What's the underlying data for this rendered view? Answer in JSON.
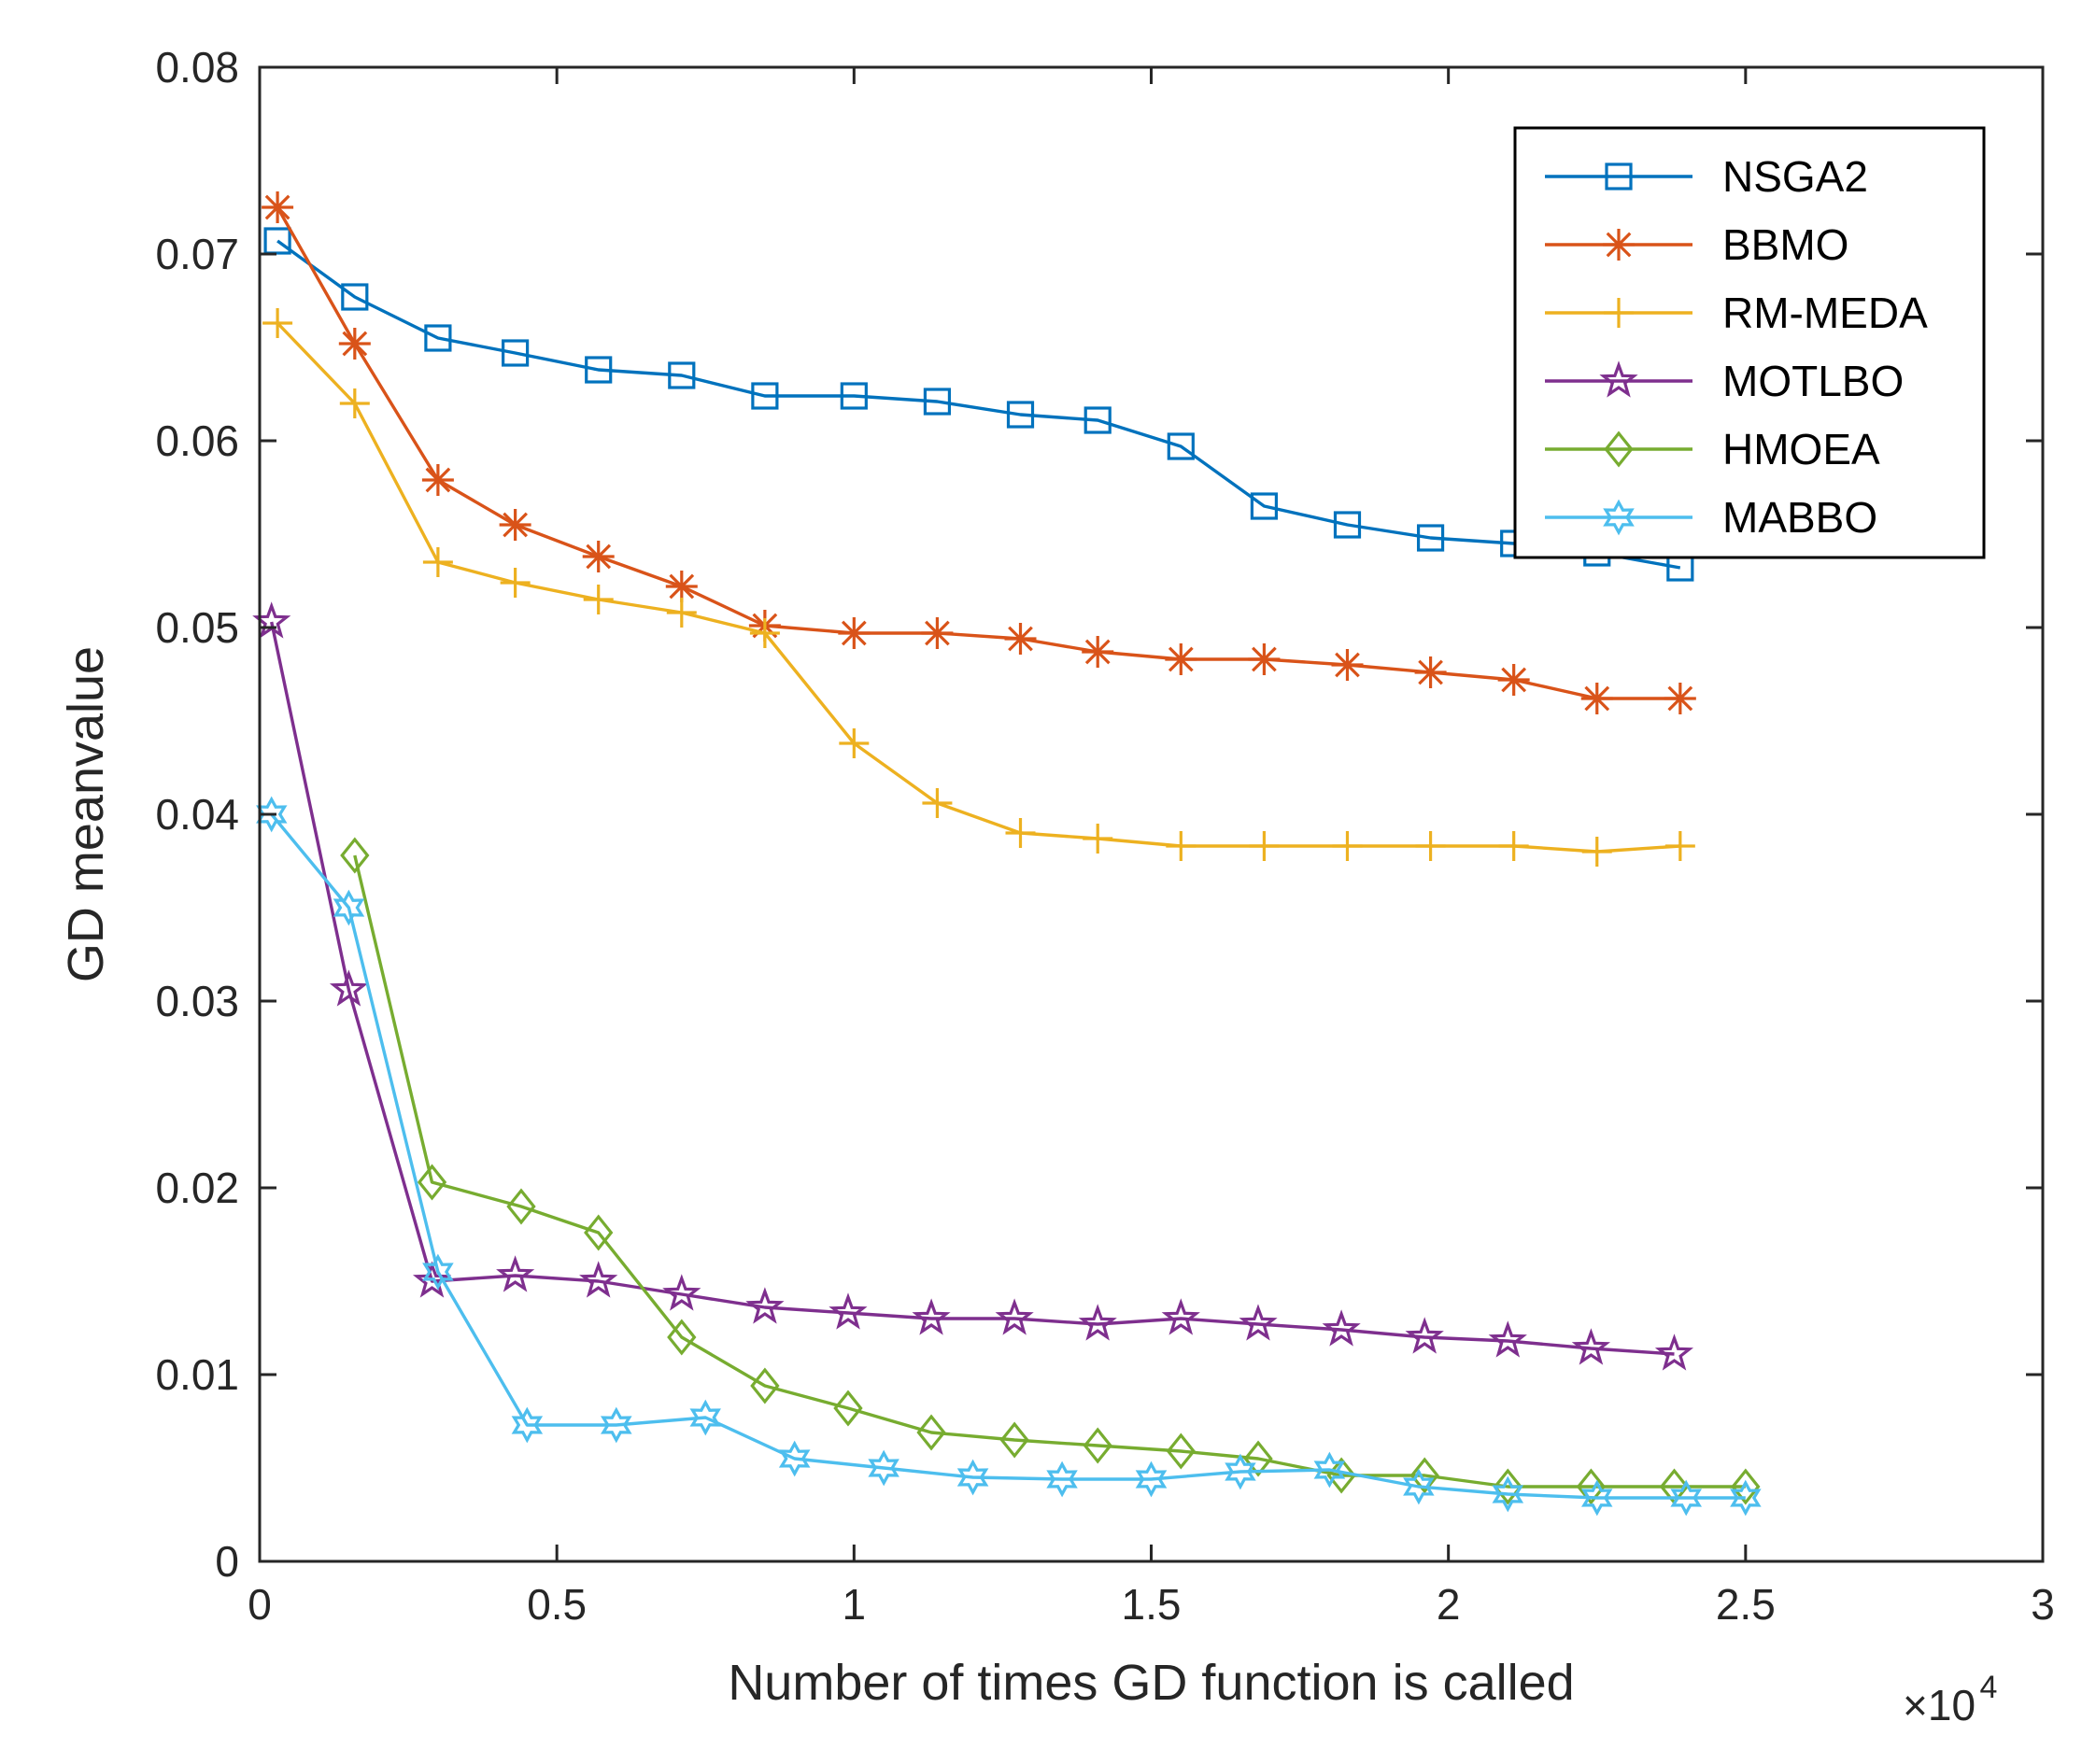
{
  "chart_data": {
    "type": "line",
    "title": "",
    "xlabel": "Number of times GD function is called",
    "ylabel": "GD meanvalue",
    "x_exponent_label": {
      "base": "×10",
      "power": "4"
    },
    "xlim": [
      0,
      3
    ],
    "ylim": [
      0,
      0.08
    ],
    "x_ticks": [
      "0",
      "0.5",
      "1",
      "1.5",
      "2",
      "2.5",
      "3"
    ],
    "y_ticks": [
      "0",
      "0.01",
      "0.02",
      "0.03",
      "0.04",
      "0.05",
      "0.06",
      "0.07",
      "0.08"
    ],
    "grid": false,
    "legend_position": "top-right",
    "series": [
      {
        "name": "NSGA2",
        "color": "#0072BD",
        "marker": "square",
        "x": [
          0.03,
          0.16,
          0.3,
          0.43,
          0.57,
          0.71,
          0.85,
          1.0,
          1.14,
          1.28,
          1.41,
          1.55,
          1.69,
          1.83,
          1.97,
          2.11,
          2.25,
          2.39
        ],
        "y": [
          0.0707,
          0.0677,
          0.0655,
          0.0647,
          0.0638,
          0.0635,
          0.0624,
          0.0624,
          0.0621,
          0.0614,
          0.0611,
          0.0597,
          0.0565,
          0.0555,
          0.0548,
          0.0545,
          0.054,
          0.0532
        ]
      },
      {
        "name": "BBMO",
        "color": "#D95319",
        "marker": "asterisk",
        "x": [
          0.03,
          0.16,
          0.3,
          0.43,
          0.57,
          0.71,
          0.85,
          1.0,
          1.14,
          1.28,
          1.41,
          1.55,
          1.69,
          1.83,
          1.97,
          2.11,
          2.25,
          2.39
        ],
        "y": [
          0.0725,
          0.0652,
          0.0579,
          0.0555,
          0.0538,
          0.0522,
          0.0501,
          0.0497,
          0.0497,
          0.0494,
          0.0487,
          0.0483,
          0.0483,
          0.048,
          0.0476,
          0.0472,
          0.0462,
          0.0462
        ]
      },
      {
        "name": "RM-MEDA",
        "color": "#EDB120",
        "marker": "plus",
        "x": [
          0.03,
          0.16,
          0.3,
          0.43,
          0.57,
          0.71,
          0.85,
          1.0,
          1.14,
          1.28,
          1.41,
          1.55,
          1.69,
          1.83,
          1.97,
          2.11,
          2.25,
          2.39
        ],
        "y": [
          0.0663,
          0.062,
          0.0535,
          0.0524,
          0.0515,
          0.0508,
          0.0497,
          0.0438,
          0.0406,
          0.039,
          0.0387,
          0.0383,
          0.0383,
          0.0383,
          0.0383,
          0.0383,
          0.038,
          0.0383
        ]
      },
      {
        "name": "MOTLBO",
        "color": "#7E2F8E",
        "marker": "pentagram",
        "x": [
          0.02,
          0.15,
          0.29,
          0.43,
          0.57,
          0.71,
          0.85,
          0.99,
          1.13,
          1.27,
          1.41,
          1.55,
          1.68,
          1.82,
          1.96,
          2.1,
          2.24,
          2.38
        ],
        "y": [
          0.0503,
          0.0306,
          0.015,
          0.0153,
          0.015,
          0.0143,
          0.0136,
          0.0133,
          0.013,
          0.013,
          0.0127,
          0.013,
          0.0127,
          0.0124,
          0.012,
          0.0118,
          0.0114,
          0.0111
        ]
      },
      {
        "name": "HMOEA",
        "color": "#77AC30",
        "marker": "diamond",
        "x": [
          0.16,
          0.29,
          0.44,
          0.57,
          0.71,
          0.85,
          0.99,
          1.13,
          1.27,
          1.41,
          1.55,
          1.68,
          1.82,
          1.96,
          2.1,
          2.24,
          2.38,
          2.5
        ],
        "y": [
          0.0378,
          0.0203,
          0.019,
          0.0176,
          0.012,
          0.0094,
          0.0082,
          0.0069,
          0.0065,
          0.0062,
          0.0059,
          0.0055,
          0.0046,
          0.0046,
          0.004,
          0.004,
          0.004,
          0.004
        ]
      },
      {
        "name": "MABBO",
        "color": "#4DBEEE",
        "marker": "hexagram",
        "x": [
          0.02,
          0.15,
          0.3,
          0.45,
          0.6,
          0.75,
          0.9,
          1.05,
          1.2,
          1.35,
          1.5,
          1.65,
          1.8,
          1.95,
          2.1,
          2.25,
          2.4,
          2.5
        ],
        "y": [
          0.04,
          0.035,
          0.0155,
          0.0073,
          0.0073,
          0.0077,
          0.0055,
          0.005,
          0.0045,
          0.0044,
          0.0044,
          0.0048,
          0.0049,
          0.004,
          0.0036,
          0.0034,
          0.0034,
          0.0034
        ]
      }
    ]
  }
}
